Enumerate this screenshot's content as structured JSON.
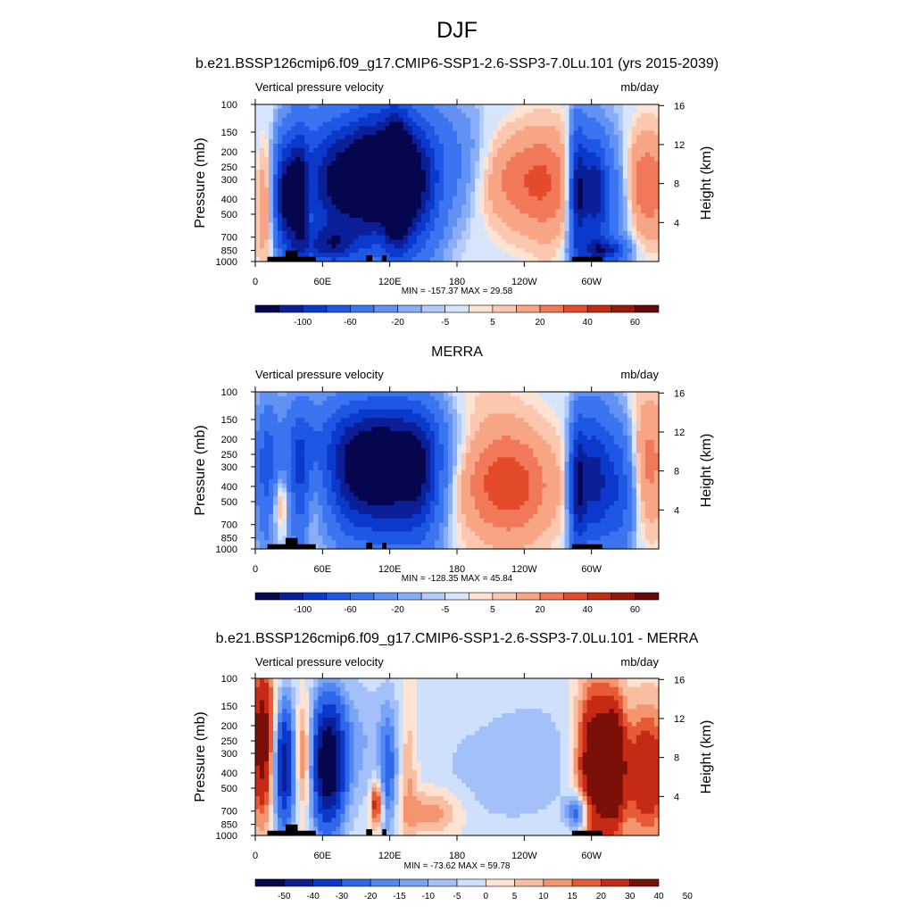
{
  "figure": {
    "season_title": "DJF"
  },
  "colors": {
    "diverging_17": [
      "#06064f",
      "#0a1f98",
      "#0b39cc",
      "#1f57e5",
      "#3b74f0",
      "#6192f3",
      "#8aaef6",
      "#b2cbfa",
      "#d6e5fc",
      "#fde3d3",
      "#fbc7ae",
      "#f8a586",
      "#f1795a",
      "#e44b2b",
      "#c42a14",
      "#951a0c",
      "#640808"
    ],
    "diverging_14": [
      "#06064f",
      "#0a1f98",
      "#0b39cc",
      "#2f67ea",
      "#5287f2",
      "#7aa4f5",
      "#a3c0f8",
      "#cfe0fc",
      "#fde3d3",
      "#f9bea1",
      "#f4956f",
      "#e85a35",
      "#c42a14",
      "#7a1008"
    ]
  },
  "panels": [
    {
      "title": "b.e21.BSSP126cmip6.f09_g17.CMIP6-SSP1-2.6-SSP3-7.0Lu.101 (yrs 2015-2039)",
      "variable": "Vertical pressure velocity",
      "units": "mb/day",
      "minmax_text": "MIN = -157.37  MAX =  29.58",
      "colorbar_labels": [
        "-100",
        "-60",
        "-20",
        "-5",
        "5",
        "20",
        "40",
        "60"
      ]
    },
    {
      "title": "MERRA",
      "variable": "Vertical pressure velocity",
      "units": "mb/day",
      "minmax_text": "MIN = -128.35  MAX =  45.84",
      "colorbar_labels": [
        "-100",
        "-60",
        "-20",
        "-5",
        "5",
        "20",
        "40",
        "60"
      ]
    },
    {
      "title": "b.e21.BSSP126cmip6.f09_g17.CMIP6-SSP1-2.6-SSP3-7.0Lu.101 - MERRA",
      "variable": "Vertical pressure velocity",
      "units": "mb/day",
      "minmax_text": "MIN = -73.62  MAX =  59.78",
      "colorbar_labels": [
        "-50",
        "-40",
        "-30",
        "-20",
        "-15",
        "-10",
        "-5",
        "0",
        "5",
        "10",
        "15",
        "20",
        "30",
        "40",
        "50"
      ]
    }
  ],
  "chart_data": [
    {
      "type": "heatmap",
      "title": "b.e21.BSSP126cmip6.f09_g17.CMIP6-SSP1-2.6-SSP3-7.0Lu.101 (yrs 2015-2039)",
      "ylabel": "Pressure (mb)",
      "ylabel_right": "Height (km)",
      "x_ticks": [
        "0",
        "60E",
        "120E",
        "180",
        "120W",
        "60W"
      ],
      "x_range_deg": [
        0,
        360
      ],
      "y_ticks": [
        "100",
        "150",
        "200",
        "250",
        "300",
        "400",
        "500",
        "700",
        "850",
        "1000"
      ],
      "y_range_mb": [
        100,
        1000
      ],
      "y_scale": "log",
      "right_ticks": [
        "16",
        "12",
        "8",
        "4"
      ],
      "colorbar_levels": [
        -100,
        -60,
        -20,
        -5,
        5,
        20,
        40,
        60
      ],
      "min": -157.37,
      "max": 29.58
    },
    {
      "type": "heatmap",
      "title": "MERRA",
      "ylabel": "Pressure (mb)",
      "ylabel_right": "Height (km)",
      "x_ticks": [
        "0",
        "60E",
        "120E",
        "180",
        "120W",
        "60W"
      ],
      "x_range_deg": [
        0,
        360
      ],
      "y_ticks": [
        "100",
        "150",
        "200",
        "250",
        "300",
        "400",
        "500",
        "700",
        "850",
        "1000"
      ],
      "y_range_mb": [
        100,
        1000
      ],
      "y_scale": "log",
      "right_ticks": [
        "16",
        "12",
        "8",
        "4"
      ],
      "colorbar_levels": [
        -100,
        -60,
        -20,
        -5,
        5,
        20,
        40,
        60
      ],
      "min": -128.35,
      "max": 45.84
    },
    {
      "type": "heatmap",
      "title": "b.e21.BSSP126cmip6.f09_g17.CMIP6-SSP1-2.6-SSP3-7.0Lu.101 - MERRA",
      "ylabel": "Pressure (mb)",
      "ylabel_right": "Height (km)",
      "x_ticks": [
        "0",
        "60E",
        "120E",
        "180",
        "120W",
        "60W"
      ],
      "x_range_deg": [
        0,
        360
      ],
      "y_ticks": [
        "100",
        "150",
        "200",
        "250",
        "300",
        "400",
        "500",
        "700",
        "850",
        "1000"
      ],
      "y_range_mb": [
        100,
        1000
      ],
      "y_scale": "log",
      "right_ticks": [
        "16",
        "12",
        "8",
        "4"
      ],
      "colorbar_levels": [
        -50,
        -40,
        -30,
        -20,
        -15,
        -10,
        -5,
        0,
        5,
        10,
        15,
        20,
        30,
        40,
        50
      ],
      "min": -73.62,
      "max": 59.78
    }
  ]
}
